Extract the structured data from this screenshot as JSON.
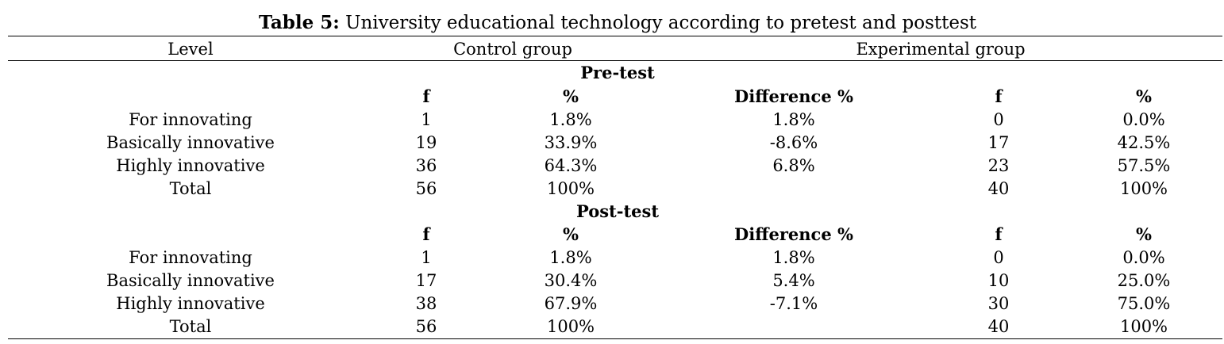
{
  "caption": {
    "label": "Table 5:",
    "text": " University educational technology according to pretest and posttest"
  },
  "header": {
    "level": "Level",
    "control": "Control group",
    "experimental": "Experimental group"
  },
  "sections": [
    {
      "title": "Pre-test",
      "subheaders": [
        "f",
        "%",
        "Difference %",
        "f",
        "%"
      ],
      "rows": [
        {
          "level": "For innovating",
          "c_f": "1",
          "c_pct": "1.8%",
          "diff": "1.8%",
          "e_f": "0",
          "e_pct": "0.0%"
        },
        {
          "level": "Basically innovative",
          "c_f": "19",
          "c_pct": "33.9%",
          "diff": "-8.6%",
          "e_f": "17",
          "e_pct": "42.5%"
        },
        {
          "level": "Highly innovative",
          "c_f": "36",
          "c_pct": "64.3%",
          "diff": "6.8%",
          "e_f": "23",
          "e_pct": "57.5%"
        },
        {
          "level": "Total",
          "c_f": "56",
          "c_pct": "100%",
          "diff": "",
          "e_f": "40",
          "e_pct": "100%"
        }
      ]
    },
    {
      "title": "Post-test",
      "subheaders": [
        "f",
        "%",
        "Difference %",
        "f",
        "%"
      ],
      "rows": [
        {
          "level": "For innovating",
          "c_f": "1",
          "c_pct": "1.8%",
          "diff": "1.8%",
          "e_f": "0",
          "e_pct": "0.0%"
        },
        {
          "level": "Basically innovative",
          "c_f": "17",
          "c_pct": "30.4%",
          "diff": "5.4%",
          "e_f": "10",
          "e_pct": "25.0%"
        },
        {
          "level": "Highly innovative",
          "c_f": "38",
          "c_pct": "67.9%",
          "diff": "-7.1%",
          "e_f": "30",
          "e_pct": "75.0%"
        },
        {
          "level": "Total",
          "c_f": "56",
          "c_pct": "100%",
          "diff": "",
          "e_f": "40",
          "e_pct": "100%"
        }
      ]
    }
  ]
}
